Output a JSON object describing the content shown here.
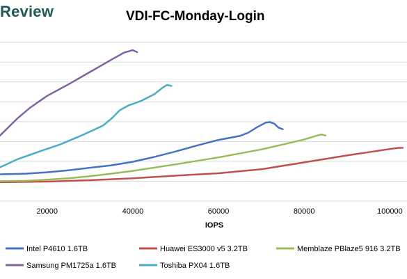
{
  "brand": {
    "text": "Review"
  },
  "chart_data": {
    "type": "line",
    "title": "VDI-FC-Monday-Login",
    "xlabel": "IOPS",
    "ylabel": "",
    "xlim": [
      9000,
      104000
    ],
    "ylim": [
      0,
      8.2
    ],
    "x_ticks": [
      20000,
      40000,
      60000,
      80000,
      100000
    ],
    "x_tick_labels": [
      "20000",
      "40000",
      "60000",
      "80000",
      "100000"
    ],
    "y_gridlines": [
      0,
      1,
      2,
      3,
      4,
      5,
      6,
      7,
      8
    ],
    "grid": true,
    "legend_position": "bottom",
    "series": [
      {
        "name": "Intel P4610 1.6TB",
        "color": "#4472c4",
        "x": [
          9000,
          15000,
          20000,
          25000,
          30000,
          35000,
          40000,
          45000,
          50000,
          55000,
          60000,
          65000,
          67000,
          69000,
          71000,
          72000,
          73000,
          74000,
          75000
        ],
        "y": [
          1.35,
          1.38,
          1.45,
          1.55,
          1.68,
          1.8,
          1.98,
          2.22,
          2.5,
          2.8,
          3.08,
          3.28,
          3.45,
          3.72,
          3.95,
          3.98,
          3.9,
          3.7,
          3.62
        ]
      },
      {
        "name": "Huawei ES3000 v5 3.2TB",
        "color": "#c0504d",
        "x": [
          9000,
          20000,
          30000,
          40000,
          50000,
          60000,
          70000,
          80000,
          90000,
          100000,
          102000,
          103000
        ],
        "y": [
          0.95,
          0.98,
          1.05,
          1.15,
          1.28,
          1.4,
          1.6,
          1.95,
          2.3,
          2.62,
          2.68,
          2.68
        ]
      },
      {
        "name": "Memblaze PBlaze5 916 3.2TB",
        "color": "#9bbb59",
        "x": [
          9000,
          15000,
          20000,
          25000,
          30000,
          35000,
          40000,
          50000,
          60000,
          70000,
          75000,
          80000,
          83000,
          84000,
          85000
        ],
        "y": [
          1.0,
          1.02,
          1.08,
          1.15,
          1.25,
          1.38,
          1.52,
          1.85,
          2.2,
          2.6,
          2.85,
          3.1,
          3.3,
          3.35,
          3.3
        ]
      },
      {
        "name": "Samsung PM1725a 1.6TB",
        "color": "#8064a2",
        "x": [
          9000,
          13000,
          16000,
          20000,
          25000,
          30000,
          35000,
          38000,
          40000,
          41000
        ],
        "y": [
          3.3,
          4.15,
          4.7,
          5.3,
          5.88,
          6.5,
          7.12,
          7.48,
          7.6,
          7.5
        ]
      },
      {
        "name": "Toshiba PX04 1.6TB",
        "color": "#4bacc6",
        "x": [
          9000,
          13000,
          18000,
          23000,
          28000,
          33000,
          35000,
          37000,
          39000,
          42000,
          45000,
          47000,
          48000,
          49000
        ],
        "y": [
          1.7,
          2.1,
          2.48,
          2.85,
          3.3,
          3.8,
          4.15,
          4.58,
          4.82,
          5.05,
          5.38,
          5.72,
          5.85,
          5.8
        ]
      }
    ]
  }
}
